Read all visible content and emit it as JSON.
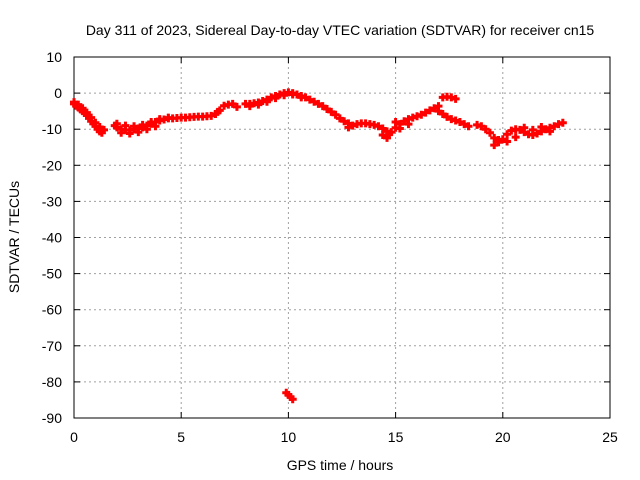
{
  "chart_data": {
    "type": "scatter",
    "title": "Day 311 of 2023, Sidereal Day-to-day VTEC variation (SDTVAR) for receiver cn15",
    "xlabel": "GPS time / hours",
    "ylabel": "SDTVAR / TECUs",
    "xlim": [
      0,
      25
    ],
    "ylim": [
      -90,
      10
    ],
    "xticks": [
      0,
      5,
      10,
      15,
      20,
      25
    ],
    "yticks": [
      10,
      0,
      -10,
      -20,
      -30,
      -40,
      -50,
      -60,
      -70,
      -80,
      -90
    ],
    "grid": true,
    "marker": "+",
    "series": [
      {
        "name": "SDTVAR",
        "color": "#ff0000",
        "points": [
          [
            0.0,
            -3.0
          ],
          [
            0.1,
            -3.5
          ],
          [
            0.2,
            -4.0
          ],
          [
            0.3,
            -4.5
          ],
          [
            0.4,
            -5.0
          ],
          [
            0.5,
            -5.5
          ],
          [
            0.6,
            -6.2
          ],
          [
            0.7,
            -7.0
          ],
          [
            0.8,
            -7.8
          ],
          [
            0.9,
            -8.5
          ],
          [
            1.0,
            -9.2
          ],
          [
            1.1,
            -10.0
          ],
          [
            1.2,
            -10.6
          ],
          [
            1.3,
            -11.0
          ],
          [
            0.0,
            -2.5
          ],
          [
            0.2,
            -3.2
          ],
          [
            0.4,
            -4.2
          ],
          [
            0.6,
            -5.4
          ],
          [
            0.8,
            -6.8
          ],
          [
            1.0,
            -8.2
          ],
          [
            1.2,
            -9.4
          ],
          [
            1.4,
            -10.2
          ],
          [
            1.9,
            -9.0
          ],
          [
            2.0,
            -9.5
          ],
          [
            2.2,
            -10.0
          ],
          [
            2.4,
            -10.2
          ],
          [
            2.6,
            -10.3
          ],
          [
            2.8,
            -10.0
          ],
          [
            3.0,
            -9.8
          ],
          [
            3.2,
            -9.5
          ],
          [
            3.4,
            -9.0
          ],
          [
            3.6,
            -8.5
          ],
          [
            3.8,
            -8.0
          ],
          [
            4.0,
            -7.6
          ],
          [
            4.2,
            -7.3
          ],
          [
            4.4,
            -7.0
          ],
          [
            4.6,
            -7.0
          ],
          [
            4.8,
            -6.9
          ],
          [
            5.0,
            -6.8
          ],
          [
            5.2,
            -6.8
          ],
          [
            5.4,
            -6.7
          ],
          [
            5.6,
            -6.6
          ],
          [
            5.8,
            -6.5
          ],
          [
            6.0,
            -6.5
          ],
          [
            6.2,
            -6.4
          ],
          [
            6.4,
            -6.3
          ],
          [
            2.0,
            -8.5
          ],
          [
            2.4,
            -9.0
          ],
          [
            2.8,
            -9.2
          ],
          [
            3.2,
            -8.8
          ],
          [
            3.6,
            -8.0
          ],
          [
            4.0,
            -7.2
          ],
          [
            4.4,
            -6.8
          ],
          [
            2.2,
            -11.0
          ],
          [
            2.6,
            -11.2
          ],
          [
            3.0,
            -10.8
          ],
          [
            3.4,
            -10.0
          ],
          [
            3.8,
            -9.2
          ],
          [
            6.6,
            -5.8
          ],
          [
            6.7,
            -5.2
          ],
          [
            6.8,
            -4.8
          ],
          [
            7.0,
            -3.5
          ],
          [
            7.2,
            -3.2
          ],
          [
            7.4,
            -3.0
          ],
          [
            7.6,
            -3.8
          ],
          [
            8.0,
            -3.0
          ],
          [
            8.2,
            -3.0
          ],
          [
            8.4,
            -2.8
          ],
          [
            8.6,
            -2.6
          ],
          [
            8.8,
            -2.2
          ],
          [
            9.0,
            -1.8
          ],
          [
            9.2,
            -1.2
          ],
          [
            9.4,
            -0.8
          ],
          [
            9.6,
            -0.4
          ],
          [
            9.8,
            0.0
          ],
          [
            10.0,
            0.2
          ],
          [
            10.2,
            0.0
          ],
          [
            10.4,
            -0.4
          ],
          [
            10.6,
            -0.8
          ],
          [
            10.8,
            -1.2
          ],
          [
            11.0,
            -1.8
          ],
          [
            11.2,
            -2.4
          ],
          [
            11.4,
            -3.0
          ],
          [
            11.6,
            -3.6
          ],
          [
            11.8,
            -4.4
          ],
          [
            12.0,
            -5.2
          ],
          [
            12.2,
            -6.0
          ],
          [
            12.4,
            -7.0
          ],
          [
            12.6,
            -7.8
          ],
          [
            12.8,
            -8.4
          ],
          [
            8.2,
            -3.6
          ],
          [
            8.6,
            -3.2
          ],
          [
            9.0,
            -2.4
          ],
          [
            9.4,
            -1.4
          ],
          [
            9.8,
            -0.6
          ],
          [
            10.2,
            -0.4
          ],
          [
            10.6,
            -1.2
          ],
          [
            9.9,
            -83.0
          ],
          [
            10.0,
            -83.6
          ],
          [
            10.1,
            -84.2
          ],
          [
            10.2,
            -84.8
          ],
          [
            12.8,
            -9.5
          ],
          [
            13.0,
            -9.0
          ],
          [
            13.2,
            -8.6
          ],
          [
            13.4,
            -8.4
          ],
          [
            13.6,
            -8.4
          ],
          [
            13.8,
            -8.6
          ],
          [
            14.0,
            -8.8
          ],
          [
            14.2,
            -9.2
          ],
          [
            14.4,
            -9.8
          ],
          [
            14.6,
            -10.6
          ],
          [
            14.7,
            -11.4
          ],
          [
            14.8,
            -10.8
          ],
          [
            15.0,
            -9.6
          ],
          [
            15.2,
            -8.6
          ],
          [
            15.4,
            -7.8
          ],
          [
            15.6,
            -7.2
          ],
          [
            15.8,
            -6.8
          ],
          [
            16.0,
            -6.4
          ],
          [
            16.2,
            -6.0
          ],
          [
            16.4,
            -5.4
          ],
          [
            16.6,
            -4.8
          ],
          [
            16.8,
            -4.2
          ],
          [
            17.0,
            -3.6
          ],
          [
            14.4,
            -11.6
          ],
          [
            14.6,
            -12.4
          ],
          [
            15.0,
            -8.0
          ],
          [
            15.2,
            -9.8
          ],
          [
            15.6,
            -8.6
          ],
          [
            17.2,
            -1.2
          ],
          [
            17.4,
            -1.0
          ],
          [
            17.6,
            -1.2
          ],
          [
            17.8,
            -1.6
          ],
          [
            17.0,
            -5.0
          ],
          [
            17.2,
            -5.8
          ],
          [
            17.4,
            -6.6
          ],
          [
            17.6,
            -7.2
          ],
          [
            17.8,
            -7.6
          ],
          [
            18.0,
            -8.0
          ],
          [
            18.2,
            -8.6
          ],
          [
            18.4,
            -9.2
          ],
          [
            18.8,
            -8.8
          ],
          [
            19.0,
            -9.2
          ],
          [
            19.2,
            -10.0
          ],
          [
            19.4,
            -11.0
          ],
          [
            19.6,
            -12.4
          ],
          [
            19.8,
            -13.6
          ],
          [
            20.0,
            -12.8
          ],
          [
            20.2,
            -11.4
          ],
          [
            20.4,
            -10.4
          ],
          [
            20.6,
            -10.0
          ],
          [
            20.8,
            -10.2
          ],
          [
            21.0,
            -10.8
          ],
          [
            21.2,
            -11.4
          ],
          [
            21.4,
            -11.6
          ],
          [
            21.6,
            -11.2
          ],
          [
            21.8,
            -10.6
          ],
          [
            22.0,
            -10.0
          ],
          [
            22.2,
            -9.6
          ],
          [
            22.4,
            -9.2
          ],
          [
            22.6,
            -8.6
          ],
          [
            22.8,
            -8.2
          ],
          [
            19.6,
            -14.4
          ],
          [
            19.8,
            -13.0
          ],
          [
            20.2,
            -13.4
          ],
          [
            20.6,
            -12.2
          ],
          [
            21.0,
            -9.6
          ],
          [
            21.4,
            -10.2
          ],
          [
            21.8,
            -9.4
          ],
          [
            22.2,
            -10.6
          ]
        ]
      }
    ]
  }
}
